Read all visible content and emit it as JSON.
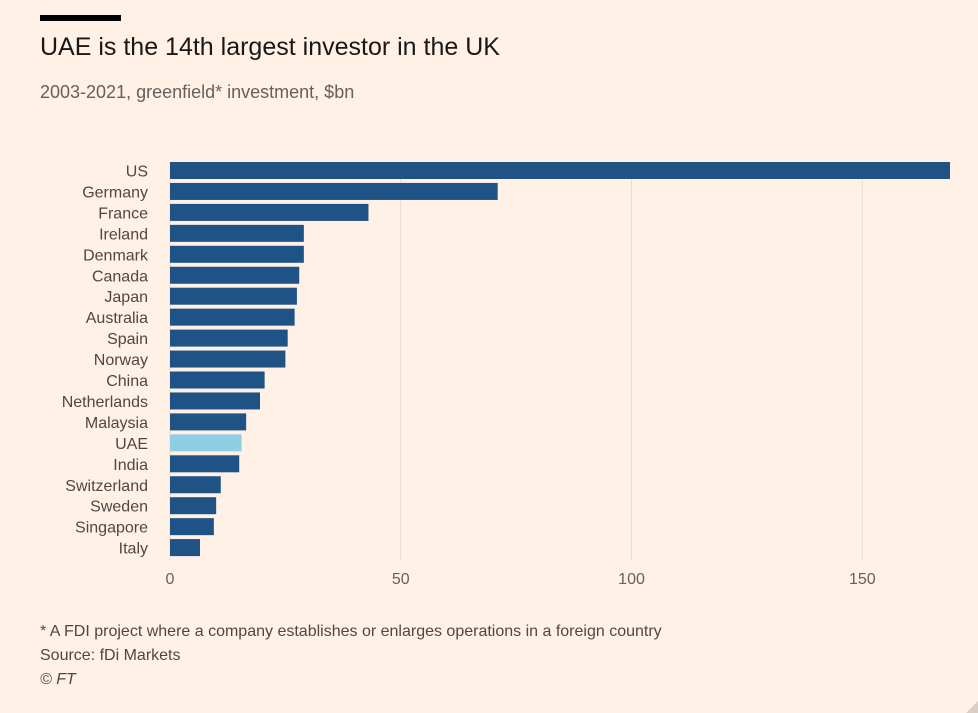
{
  "title": "UAE is the 14th largest investor in the UK",
  "subtitle": "2003-2021, greenfield* investment, $bn",
  "footnote": "* A FDI project where a company establishes or enlarges operations in a foreign country",
  "source": "Source: fDi Markets",
  "credit": "© FT",
  "colors": {
    "bar": "#1f5386",
    "highlight": "#8fcfe6",
    "grid": "#e8ddd4",
    "background": "#fff1e5"
  },
  "chart_data": {
    "type": "bar",
    "orientation": "horizontal",
    "categories": [
      "US",
      "Germany",
      "France",
      "Ireland",
      "Denmark",
      "Canada",
      "Japan",
      "Australia",
      "Spain",
      "Norway",
      "China",
      "Netherlands",
      "Malaysia",
      "UAE",
      "India",
      "Switzerland",
      "Sweden",
      "Singapore",
      "Italy"
    ],
    "values": [
      169,
      71,
      43,
      29,
      29,
      28,
      27.5,
      27,
      25.5,
      25,
      20.5,
      19.5,
      16.5,
      15.5,
      15,
      11,
      10,
      9.5,
      6.5
    ],
    "highlight": "UAE",
    "xlim": [
      0,
      169
    ],
    "xticks": [
      0,
      50,
      100,
      150
    ],
    "grid": true
  }
}
